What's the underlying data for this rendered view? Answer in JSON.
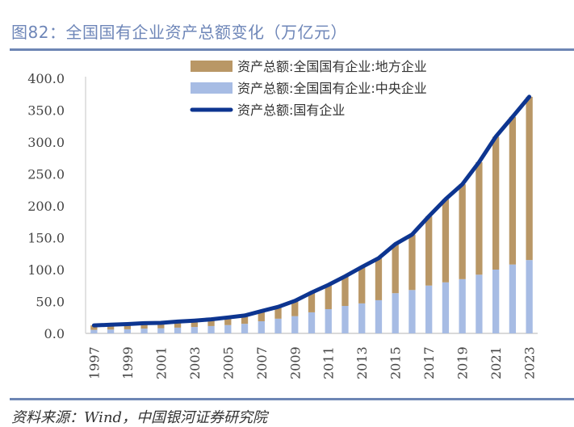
{
  "header": {
    "title": "图82：全国国有企业资产总额变化（万亿元）"
  },
  "footer": {
    "source": "资料来源：Wind，中国银河证券研究院"
  },
  "colors": {
    "local": "#b99766",
    "central": "#a7bce4",
    "total": "#0d3590",
    "title": "#6e86b8",
    "rule": "#6d86b4"
  },
  "chart_data": {
    "type": "bar",
    "stacked": true,
    "title": "全国国有企业资产总额变化（万亿元）",
    "xlabel": "",
    "ylabel": "",
    "ylim": [
      0,
      400
    ],
    "yticks": [
      "0.0",
      "50.0",
      "100.0",
      "150.0",
      "200.0",
      "250.0",
      "300.0",
      "350.0",
      "400.0"
    ],
    "ytick_values": [
      0,
      50,
      100,
      150,
      200,
      250,
      300,
      350,
      400
    ],
    "categories": [
      "1997",
      "1998",
      "1999",
      "2000",
      "2001",
      "2002",
      "2003",
      "2004",
      "2005",
      "2006",
      "2007",
      "2008",
      "2009",
      "2010",
      "2011",
      "2012",
      "2013",
      "2014",
      "2015",
      "2016",
      "2017",
      "2018",
      "2019",
      "2020",
      "2021",
      "2022",
      "2023"
    ],
    "xtick_labels": [
      "1997",
      "1999",
      "2001",
      "2003",
      "2005",
      "2007",
      "2009",
      "2011",
      "2013",
      "2015",
      "2017",
      "2019",
      "2021",
      "2023"
    ],
    "legend_position": "top-center",
    "series": [
      {
        "name": "资产总额:全国国有企业:地方企业",
        "type": "bar",
        "values": [
          7.0,
          7.5,
          8.0,
          8.5,
          8.5,
          9.5,
          10.0,
          10.5,
          12.0,
          13.0,
          16.0,
          18.5,
          24.0,
          31.0,
          38.0,
          46.5,
          57.0,
          66.0,
          77.0,
          86.9,
          108.5,
          130.4,
          148.9,
          176.5,
          208.3,
          231.5,
          256.0
        ]
      },
      {
        "name": "资产总额:全国国有企业:中央企业",
        "type": "bar",
        "values": [
          5.5,
          6.0,
          6.5,
          7.5,
          8.0,
          9.0,
          10.0,
          11.5,
          13.0,
          15.0,
          19.0,
          23.0,
          27.0,
          33.0,
          38.0,
          43.0,
          47.0,
          52.0,
          63.0,
          68.0,
          75.0,
          80.0,
          85.0,
          92.0,
          100.0,
          108.0,
          115.0
        ]
      },
      {
        "name": "资产总额:国有企业",
        "type": "line",
        "values": [
          12.5,
          13.5,
          14.5,
          16.0,
          16.5,
          18.5,
          20.0,
          22.0,
          25.0,
          28.0,
          35.0,
          41.5,
          51.0,
          64.0,
          76.0,
          89.5,
          104.0,
          118.0,
          140.0,
          154.9,
          183.5,
          210.4,
          233.9,
          268.5,
          308.3,
          339.5,
          371.0
        ]
      }
    ]
  }
}
